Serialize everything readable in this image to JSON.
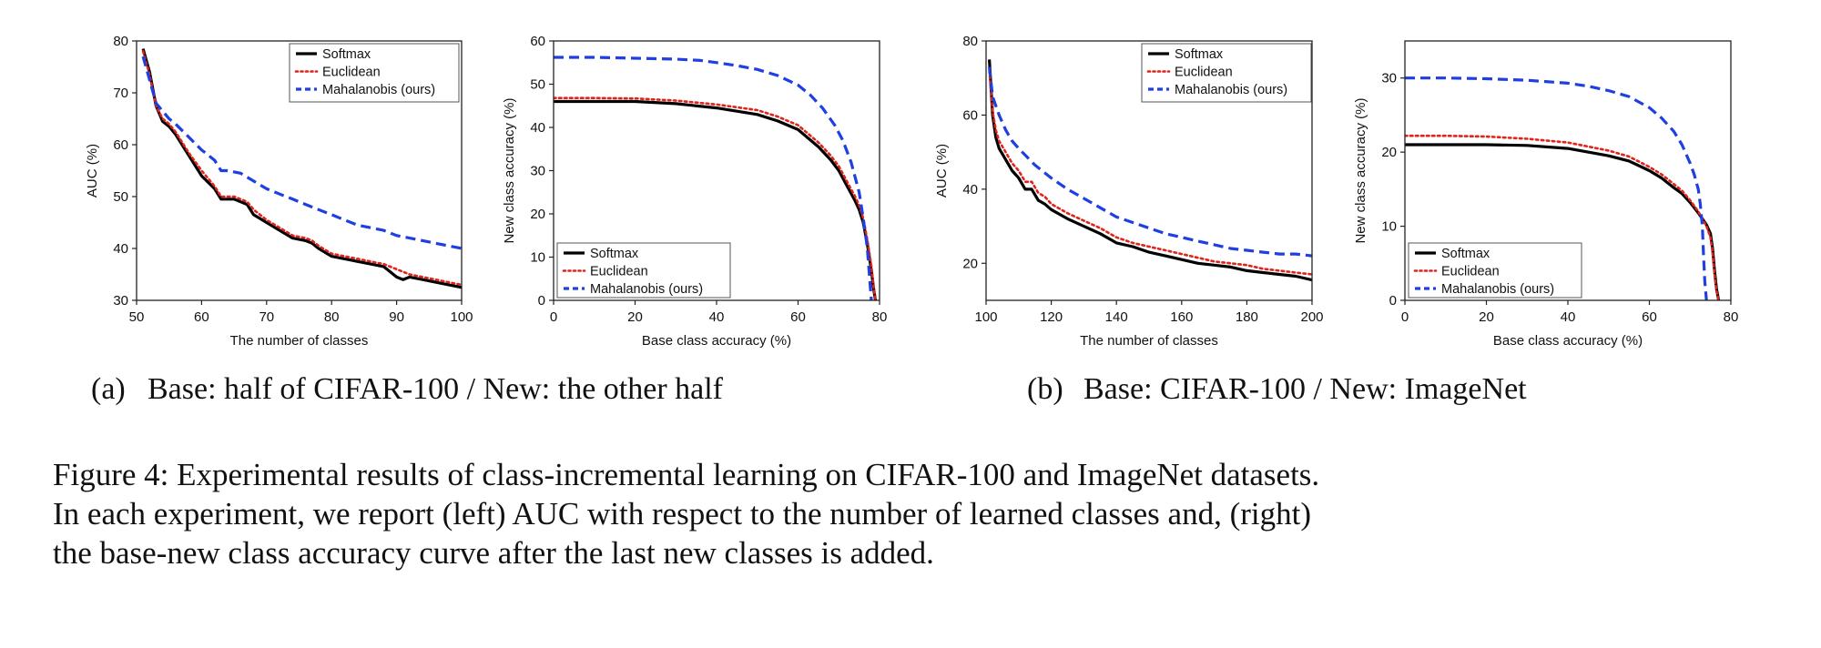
{
  "colors": {
    "softmax": "#000000",
    "euclidean": "#e0231b",
    "mahalanobis": "#1f3fe0",
    "axis": "#222222"
  },
  "chart_data": [
    {
      "type": "line",
      "xlabel": "The number of classes",
      "ylabel": "AUC (%)",
      "xlim": [
        50,
        100
      ],
      "ylim": [
        30,
        80
      ],
      "xticks": [
        50,
        60,
        70,
        80,
        90,
        100
      ],
      "yticks": [
        30,
        40,
        50,
        60,
        70,
        80
      ],
      "legend": "top-right",
      "series": [
        {
          "name": "Softmax",
          "style": "solid",
          "x": [
            51,
            52,
            53,
            54,
            55,
            56,
            58,
            60,
            62,
            63,
            64,
            65,
            66,
            67,
            68,
            70,
            72,
            74,
            76,
            77,
            78,
            80,
            82,
            84,
            86,
            88,
            89,
            90,
            91,
            92,
            94,
            96,
            98,
            100
          ],
          "y": [
            78.5,
            74,
            67.5,
            64.5,
            63.5,
            62,
            58,
            54,
            51.5,
            49.5,
            49.5,
            49.5,
            49,
            48.5,
            46.5,
            45,
            43.5,
            42,
            41.5,
            41,
            40,
            38.5,
            38,
            37.5,
            37,
            36.5,
            35.5,
            34.5,
            34,
            34.5,
            34,
            33.5,
            33,
            32.5
          ]
        },
        {
          "name": "Euclidean",
          "style": "dotted",
          "x": [
            51,
            52,
            53,
            54,
            55,
            56,
            58,
            60,
            62,
            63,
            64,
            65,
            66,
            67,
            68,
            70,
            72,
            74,
            76,
            77,
            78,
            80,
            82,
            84,
            86,
            88,
            90,
            92,
            94,
            96,
            98,
            100
          ],
          "y": [
            78,
            73.5,
            67.5,
            65,
            64,
            62.5,
            58.5,
            55,
            52,
            50,
            50,
            50,
            49.5,
            49,
            47.5,
            45.5,
            44,
            42.5,
            42,
            41.5,
            40.5,
            39,
            38.5,
            38,
            37.5,
            37,
            36,
            35,
            34.5,
            34,
            33.5,
            33
          ]
        },
        {
          "name": "Mahalanobis (ours)",
          "style": "dashed",
          "x": [
            51,
            52,
            53,
            54,
            55,
            56,
            58,
            60,
            62,
            63,
            64,
            66,
            68,
            70,
            72,
            74,
            76,
            78,
            80,
            82,
            84,
            86,
            88,
            90,
            92,
            94,
            96,
            98,
            100
          ],
          "y": [
            77,
            72.5,
            68,
            66.5,
            65,
            64,
            61.5,
            59,
            57,
            55,
            55,
            54.5,
            53,
            51.5,
            50.5,
            49.5,
            48.5,
            47.5,
            46.5,
            45.5,
            44.5,
            44,
            43.5,
            42.5,
            42,
            41.5,
            41,
            40.5,
            40
          ]
        }
      ]
    },
    {
      "type": "line",
      "xlabel": "Base class accuracy (%)",
      "ylabel": "New class accuracy (%)",
      "xlim": [
        0,
        80
      ],
      "ylim": [
        0,
        60
      ],
      "xticks": [
        0,
        20,
        40,
        60,
        80
      ],
      "yticks": [
        0,
        10,
        20,
        30,
        40,
        50,
        60
      ],
      "legend": "bottom-left",
      "series": [
        {
          "name": "Softmax",
          "style": "solid",
          "x": [
            0,
            10,
            20,
            30,
            40,
            50,
            55,
            60,
            65,
            68,
            70,
            72,
            74,
            75,
            76,
            77,
            78,
            78.5,
            79
          ],
          "y": [
            46,
            46,
            46,
            45.5,
            44.5,
            43,
            41.5,
            39.5,
            35.5,
            32.5,
            30,
            26.5,
            23,
            21,
            18,
            13,
            7,
            3,
            0
          ]
        },
        {
          "name": "Euclidean",
          "style": "dotted",
          "x": [
            0,
            10,
            20,
            30,
            40,
            50,
            55,
            60,
            65,
            68,
            70,
            72,
            74,
            75,
            76,
            77,
            78,
            78.5,
            79
          ],
          "y": [
            46.8,
            46.8,
            46.7,
            46.2,
            45.3,
            44,
            42.5,
            40.5,
            36.5,
            33.5,
            31,
            27.5,
            24,
            22,
            19,
            14,
            8,
            3.5,
            0
          ]
        },
        {
          "name": "Mahalanobis (ours)",
          "style": "dashed",
          "x": [
            0,
            10,
            20,
            30,
            36,
            40,
            45,
            50,
            55,
            60,
            63,
            66,
            69,
            71,
            73,
            75,
            76,
            77,
            77.5,
            78
          ],
          "y": [
            56.2,
            56.2,
            56,
            55.8,
            55.5,
            55,
            54.3,
            53.4,
            52,
            49.8,
            47.5,
            44.5,
            40.5,
            37,
            32,
            25,
            19,
            12,
            6,
            0
          ]
        }
      ]
    },
    {
      "type": "line",
      "xlabel": "The number of classes",
      "ylabel": "AUC (%)",
      "xlim": [
        100,
        200
      ],
      "ylim": [
        10,
        80
      ],
      "xticks": [
        100,
        120,
        140,
        160,
        180,
        200
      ],
      "yticks": [
        20,
        40,
        60,
        80
      ],
      "legend": "top-right",
      "series": [
        {
          "name": "Softmax",
          "style": "solid",
          "x": [
            101,
            102,
            103,
            104,
            106,
            108,
            110,
            112,
            114,
            116,
            118,
            120,
            125,
            130,
            135,
            140,
            145,
            150,
            155,
            160,
            165,
            170,
            175,
            180,
            185,
            190,
            195,
            200
          ],
          "y": [
            75,
            60,
            54,
            51,
            48,
            45,
            43,
            40,
            40,
            37,
            36,
            34.5,
            32,
            30,
            28,
            25.5,
            24.5,
            23,
            22,
            21,
            20,
            19.5,
            19,
            18,
            17.5,
            17,
            16.5,
            15.5
          ]
        },
        {
          "name": "Euclidean",
          "style": "dotted",
          "x": [
            101,
            102,
            103,
            104,
            106,
            108,
            110,
            112,
            114,
            116,
            118,
            120,
            125,
            130,
            135,
            140,
            145,
            150,
            155,
            160,
            165,
            170,
            175,
            180,
            185,
            190,
            195,
            200
          ],
          "y": [
            72,
            61,
            56,
            53,
            50,
            47,
            45,
            42,
            42,
            39,
            38,
            36,
            33.5,
            31.5,
            29.5,
            27,
            25.5,
            24.5,
            23.5,
            22.5,
            21.5,
            20.5,
            20,
            19.5,
            18.5,
            18,
            17.5,
            17
          ]
        },
        {
          "name": "Mahalanobis (ours)",
          "style": "dashed",
          "x": [
            101,
            102,
            104,
            106,
            108,
            110,
            115,
            120,
            125,
            130,
            135,
            140,
            145,
            150,
            155,
            160,
            165,
            170,
            175,
            180,
            185,
            190,
            195,
            200
          ],
          "y": [
            73,
            65,
            60,
            56,
            53,
            51,
            46.5,
            43,
            40,
            37.5,
            35,
            32.5,
            31,
            29.5,
            28,
            27,
            26,
            25,
            24,
            23.5,
            23,
            22.5,
            22.5,
            22
          ]
        }
      ]
    },
    {
      "type": "line",
      "xlabel": "Base class accuracy (%)",
      "ylabel": "New class accuracy (%)",
      "xlim": [
        0,
        80
      ],
      "ylim": [
        0,
        35
      ],
      "xticks": [
        0,
        20,
        40,
        60,
        80
      ],
      "yticks": [
        0,
        10,
        20,
        30
      ],
      "legend": "bottom-left",
      "series": [
        {
          "name": "Softmax",
          "style": "solid",
          "x": [
            0,
            10,
            20,
            30,
            40,
            50,
            55,
            60,
            63,
            66,
            68,
            70,
            72,
            73,
            74,
            75,
            75.5,
            76,
            76.5,
            77
          ],
          "y": [
            21,
            21,
            21,
            20.9,
            20.5,
            19.5,
            18.8,
            17.5,
            16.5,
            15.2,
            14.4,
            13.2,
            11.8,
            11,
            10.2,
            9,
            7,
            4,
            1.5,
            0
          ]
        },
        {
          "name": "Euclidean",
          "style": "dotted",
          "x": [
            0,
            10,
            20,
            30,
            40,
            50,
            55,
            60,
            63,
            66,
            68,
            70,
            72,
            73,
            74,
            75,
            75.5,
            76,
            76.5,
            77
          ],
          "y": [
            22.2,
            22.2,
            22.1,
            21.8,
            21.3,
            20.2,
            19.4,
            18,
            17,
            15.7,
            14.8,
            13.5,
            12,
            11,
            10,
            8.5,
            6.5,
            3.5,
            1.2,
            0
          ]
        },
        {
          "name": "Mahalanobis (ours)",
          "style": "dashed",
          "x": [
            0,
            10,
            20,
            30,
            40,
            45,
            50,
            55,
            60,
            63,
            66,
            68,
            70,
            71,
            72,
            72.5,
            73,
            73.3,
            73.6,
            74
          ],
          "y": [
            30,
            30,
            29.9,
            29.7,
            29.3,
            28.9,
            28.3,
            27.5,
            26,
            24.6,
            22.8,
            21,
            18.5,
            17,
            15,
            13,
            10,
            6,
            2.5,
            0
          ]
        }
      ]
    }
  ],
  "subcaptions": {
    "a_tag": "(a)",
    "a_text": "Base: half of CIFAR-100 / New: the other half",
    "b_tag": "(b)",
    "b_text": "Base: CIFAR-100 / New: ImageNet"
  },
  "caption": {
    "line1": "Figure 4: Experimental results of class-incremental learning on CIFAR-100 and ImageNet datasets.",
    "line2": "In each experiment, we report (left) AUC with respect to the number of learned classes and, (right)",
    "line3": "the base-new class accuracy curve after the last new classes is added."
  }
}
